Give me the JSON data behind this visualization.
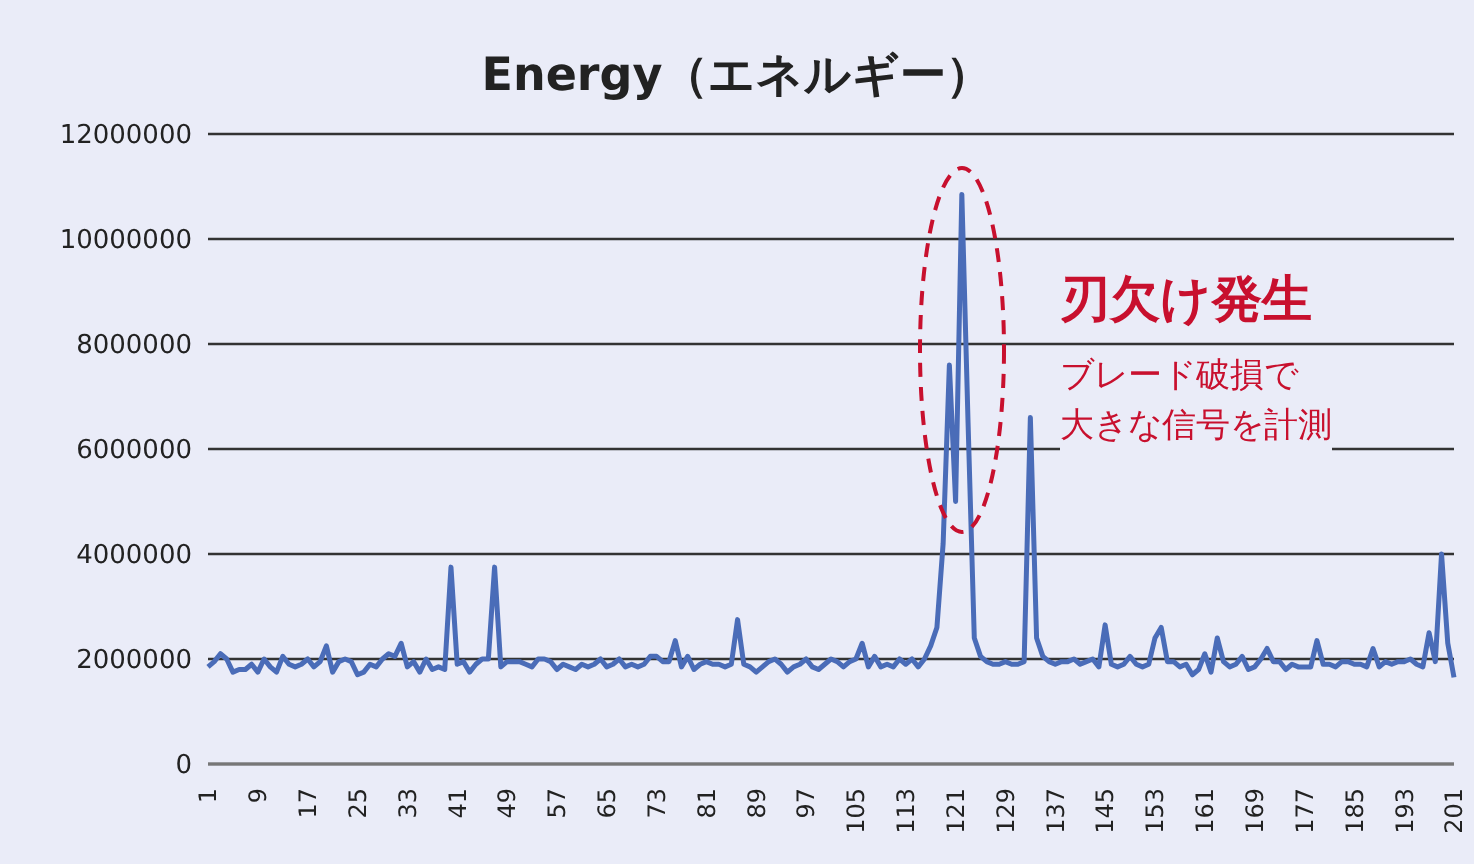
{
  "chart_data": {
    "type": "line",
    "title": "Energy（エネルギー）",
    "categories": [
      "1",
      null,
      null,
      null,
      null,
      null,
      null,
      null,
      "9",
      null,
      null,
      null,
      null,
      null,
      null,
      null,
      "17",
      null,
      null,
      null,
      null,
      null,
      null,
      null,
      "25",
      null,
      null,
      null,
      null,
      null,
      null,
      null,
      "33",
      null,
      null,
      null,
      null,
      null,
      null,
      null,
      "41",
      null,
      null,
      null,
      null,
      null,
      null,
      null,
      "49",
      null,
      null,
      null,
      null,
      null,
      null,
      null,
      "57",
      null,
      null,
      null,
      null,
      null,
      null,
      null,
      "65",
      null,
      null,
      null,
      null,
      null,
      null,
      null,
      "73",
      null,
      null,
      null,
      null,
      null,
      null,
      null,
      "81",
      null,
      null,
      null,
      null,
      null,
      null,
      null,
      "89",
      null,
      null,
      null,
      null,
      null,
      null,
      null,
      "97",
      null,
      null,
      null,
      null,
      null,
      null,
      null,
      "105",
      null,
      null,
      null,
      null,
      null,
      null,
      null,
      "113",
      null,
      null,
      null,
      null,
      null,
      null,
      null,
      "121",
      null,
      null,
      null,
      null,
      null,
      null,
      null,
      "129",
      null,
      null,
      null,
      null,
      null,
      null,
      null,
      "137",
      null,
      null,
      null,
      null,
      null,
      null,
      null,
      "145",
      null,
      null,
      null,
      null,
      null,
      null,
      null,
      "153",
      null,
      null,
      null,
      null,
      null,
      null,
      null,
      "161",
      null,
      null,
      null,
      null,
      null,
      null,
      null,
      "169",
      null,
      null,
      null,
      null,
      null,
      null,
      null,
      "177",
      null,
      null,
      null,
      null,
      null,
      null,
      null,
      "185",
      null,
      null,
      null,
      null,
      null,
      null,
      null,
      "193",
      null,
      null,
      null,
      null,
      null,
      null,
      null,
      "201"
    ],
    "series": [
      {
        "color": "#4a6cb8",
        "values": [
          1850000,
          1950000,
          2100000,
          2000000,
          1750000,
          1800000,
          1800000,
          1900000,
          1750000,
          2000000,
          1850000,
          1750000,
          2050000,
          1900000,
          1850000,
          1900000,
          2000000,
          1850000,
          1950000,
          2250000,
          1750000,
          1950000,
          2000000,
          1950000,
          1700000,
          1750000,
          1900000,
          1850000,
          2000000,
          2100000,
          2050000,
          2300000,
          1850000,
          1950000,
          1750000,
          2000000,
          1800000,
          1850000,
          1800000,
          3750000,
          1900000,
          1950000,
          1750000,
          1900000,
          2000000,
          2000000,
          3750000,
          1850000,
          1950000,
          1950000,
          1950000,
          1900000,
          1850000,
          2000000,
          2000000,
          1950000,
          1800000,
          1900000,
          1850000,
          1800000,
          1900000,
          1850000,
          1900000,
          2000000,
          1850000,
          1900000,
          2000000,
          1850000,
          1900000,
          1850000,
          1900000,
          2050000,
          2050000,
          1950000,
          1950000,
          2350000,
          1850000,
          2050000,
          1800000,
          1900000,
          1950000,
          1900000,
          1900000,
          1850000,
          1900000,
          2750000,
          1900000,
          1850000,
          1750000,
          1850000,
          1950000,
          2000000,
          1900000,
          1750000,
          1850000,
          1900000,
          2000000,
          1850000,
          1800000,
          1900000,
          2000000,
          1950000,
          1850000,
          1950000,
          2000000,
          2300000,
          1850000,
          2050000,
          1850000,
          1900000,
          1850000,
          2000000,
          1900000,
          2000000,
          1850000,
          2000000,
          2250000,
          2600000,
          4200000,
          7600000,
          5000000,
          10850000,
          6500000,
          2400000,
          2050000,
          1950000,
          1900000,
          1900000,
          1950000,
          1900000,
          1900000,
          1950000,
          6600000,
          2400000,
          2050000,
          1950000,
          1900000,
          1950000,
          1950000,
          2000000,
          1900000,
          1950000,
          2000000,
          1850000,
          2650000,
          1900000,
          1850000,
          1900000,
          2050000,
          1900000,
          1850000,
          1900000,
          2400000,
          2600000,
          1950000,
          1950000,
          1850000,
          1900000,
          1700000,
          1800000,
          2100000,
          1750000,
          2400000,
          1950000,
          1850000,
          1900000,
          2050000,
          1800000,
          1850000,
          2000000,
          2200000,
          1950000,
          1950000,
          1800000,
          1900000,
          1850000,
          1850000,
          1850000,
          2350000,
          1900000,
          1900000,
          1850000,
          1950000,
          1950000,
          1900000,
          1900000,
          1850000,
          2200000,
          1850000,
          1950000,
          1900000,
          1950000,
          1950000,
          2000000,
          1900000,
          1850000,
          2500000,
          1950000,
          4000000,
          2300000,
          1650000
        ]
      }
    ],
    "ylim": [
      0,
      12000000
    ],
    "yticks": [
      0,
      2000000,
      4000000,
      6000000,
      8000000,
      10000000,
      12000000
    ],
    "grid": "y",
    "marker": "none",
    "line_style": "solid",
    "annotations": [
      "刃欠け発生",
      "ブレード破損で",
      "大きな信号を計測"
    ]
  }
}
